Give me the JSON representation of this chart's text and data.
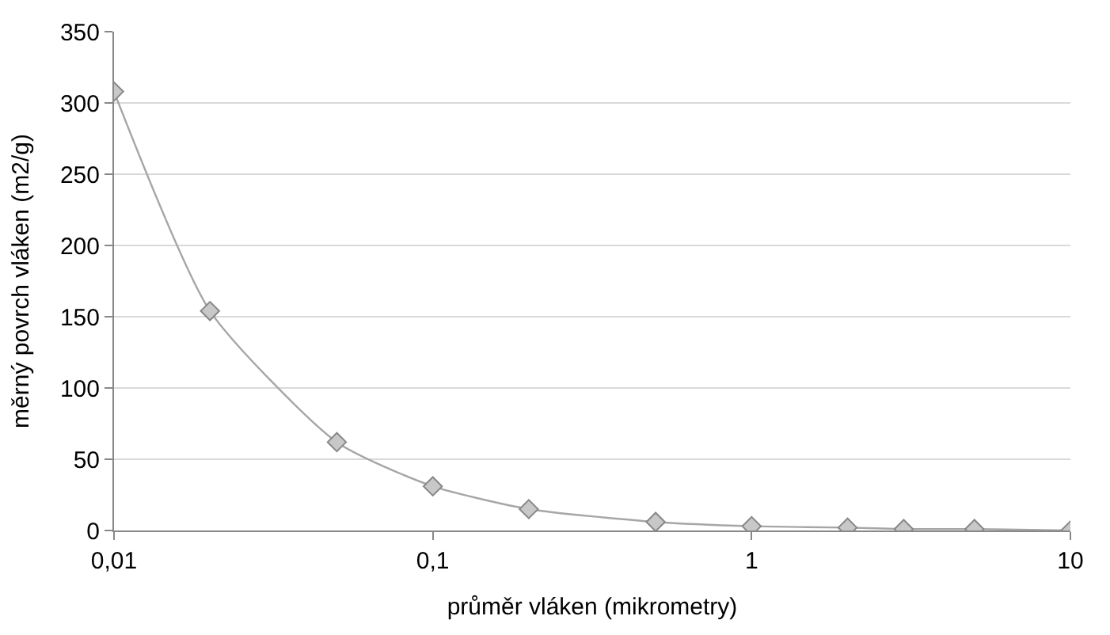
{
  "chart_data": {
    "type": "line",
    "xlabel": "průměr vláken (mikrometry)",
    "ylabel": "měrný povrch vláken (m2/g)",
    "x": [
      0.01,
      0.02,
      0.05,
      0.1,
      0.2,
      0.5,
      1,
      2,
      3,
      5,
      10
    ],
    "series": [
      {
        "color": "#a6a6a6",
        "values": [
          308,
          154,
          62,
          31,
          15,
          6,
          3,
          2,
          1,
          1,
          0
        ]
      }
    ],
    "log": "x",
    "xlim": [
      0.01,
      10
    ],
    "ylim": [
      0,
      350
    ],
    "xticks": [
      {
        "value": 0.01,
        "label": "0,01"
      },
      {
        "value": 0.1,
        "label": "0,1"
      },
      1,
      10
    ],
    "yticks": [
      0,
      50,
      100,
      150,
      200,
      250,
      300,
      350
    ],
    "grid": "y",
    "marker": "diamond",
    "line_style": "solid"
  }
}
